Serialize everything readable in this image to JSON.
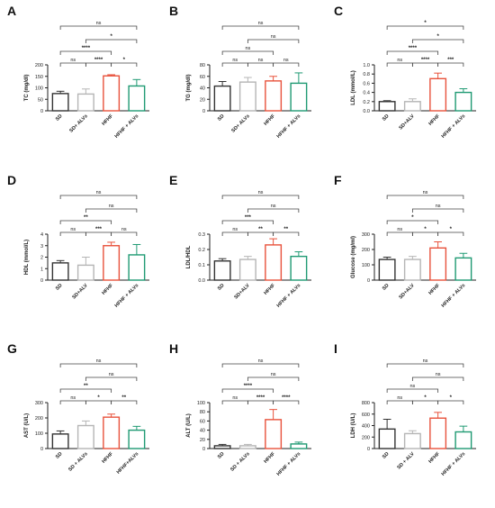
{
  "colors": {
    "SD": "#333333",
    "SD_ALV": "#b5b5b5",
    "HFHF": "#e8523c",
    "HFHF_ALV": "#1f9a73"
  },
  "chart_data": [
    {
      "panel": "A",
      "type": "bar",
      "categories": [
        "SD",
        "SD+ ALVs",
        "HFHF",
        "HFHF + ALVs"
      ],
      "values": [
        75,
        73,
        152,
        108
      ],
      "errors": [
        10,
        22,
        5,
        28
      ],
      "ylabel": "TC (mg/dl)",
      "ylim": [
        0,
        200
      ],
      "yticks": [
        0,
        50,
        100,
        150,
        200
      ],
      "brackets": [
        {
          "a": 0,
          "b": 1,
          "label": "ns",
          "level": 0
        },
        {
          "a": 1,
          "b": 2,
          "label": "****",
          "level": 0
        },
        {
          "a": 2,
          "b": 3,
          "label": "*",
          "level": 0
        },
        {
          "a": 0,
          "b": 2,
          "label": "****",
          "level": 1
        },
        {
          "a": 1,
          "b": 3,
          "label": "*",
          "level": 2
        },
        {
          "a": 0,
          "b": 3,
          "label": "ns",
          "level": 3
        }
      ]
    },
    {
      "panel": "B",
      "type": "bar",
      "categories": [
        "SD",
        "SD+ ALVs",
        "HFHF",
        "HFHF + ALVs"
      ],
      "values": [
        43,
        50,
        52,
        48
      ],
      "errors": [
        8,
        8,
        8,
        18
      ],
      "ylabel": "TG (mg/dl)",
      "ylim": [
        0,
        80
      ],
      "yticks": [
        0,
        20,
        40,
        60,
        80
      ],
      "brackets": [
        {
          "a": 0,
          "b": 1,
          "label": "ns",
          "level": 0
        },
        {
          "a": 1,
          "b": 2,
          "label": "ns",
          "level": 0
        },
        {
          "a": 2,
          "b": 3,
          "label": "ns",
          "level": 0
        },
        {
          "a": 0,
          "b": 2,
          "label": "ns",
          "level": 1
        },
        {
          "a": 1,
          "b": 3,
          "label": "ns",
          "level": 2
        },
        {
          "a": 0,
          "b": 3,
          "label": "ns",
          "level": 3
        }
      ]
    },
    {
      "panel": "C",
      "type": "bar",
      "categories": [
        "SD",
        "SD+ALV",
        "HFHF",
        "HFHF + ALVs"
      ],
      "values": [
        0.2,
        0.2,
        0.7,
        0.4
      ],
      "errors": [
        0.02,
        0.06,
        0.12,
        0.08
      ],
      "ylabel": "LDL (mmol/L)",
      "ylim": [
        0,
        1.0
      ],
      "yticks": [
        0.0,
        0.2,
        0.4,
        0.6,
        0.8,
        1.0
      ],
      "brackets": [
        {
          "a": 0,
          "b": 1,
          "label": "ns",
          "level": 0
        },
        {
          "a": 1,
          "b": 2,
          "label": "****",
          "level": 0
        },
        {
          "a": 2,
          "b": 3,
          "label": "***",
          "level": 0
        },
        {
          "a": 0,
          "b": 2,
          "label": "****",
          "level": 1
        },
        {
          "a": 1,
          "b": 3,
          "label": "*",
          "level": 2
        },
        {
          "a": 0,
          "b": 3,
          "label": "*",
          "level": 3
        }
      ]
    },
    {
      "panel": "D",
      "type": "bar",
      "categories": [
        "SD",
        "SD+ALV",
        "HFHF",
        "HFHF + ALVs"
      ],
      "values": [
        1.5,
        1.3,
        3.0,
        2.2
      ],
      "errors": [
        0.2,
        0.7,
        0.3,
        0.9
      ],
      "ylabel": "HDL (mmol/L)",
      "ylim": [
        0,
        4
      ],
      "yticks": [
        0,
        1,
        2,
        3,
        4
      ],
      "brackets": [
        {
          "a": 0,
          "b": 1,
          "label": "ns",
          "level": 0
        },
        {
          "a": 1,
          "b": 2,
          "label": "***",
          "level": 0
        },
        {
          "a": 2,
          "b": 3,
          "label": "ns",
          "level": 0
        },
        {
          "a": 0,
          "b": 2,
          "label": "**",
          "level": 1
        },
        {
          "a": 1,
          "b": 3,
          "label": "ns",
          "level": 2
        },
        {
          "a": 0,
          "b": 3,
          "label": "ns",
          "level": 3
        }
      ]
    },
    {
      "panel": "E",
      "type": "bar",
      "categories": [
        "SD",
        "SD+ALV",
        "HFHF",
        "HFHF + ALVs"
      ],
      "values": [
        0.125,
        0.135,
        0.23,
        0.155
      ],
      "errors": [
        0.015,
        0.02,
        0.04,
        0.03
      ],
      "ylabel": "LDL/HDL",
      "ylim": [
        0,
        0.3
      ],
      "yticks": [
        0.0,
        0.1,
        0.2,
        0.3
      ],
      "brackets": [
        {
          "a": 0,
          "b": 1,
          "label": "ns",
          "level": 0
        },
        {
          "a": 1,
          "b": 2,
          "label": "**",
          "level": 0
        },
        {
          "a": 2,
          "b": 3,
          "label": "**",
          "level": 0
        },
        {
          "a": 0,
          "b": 2,
          "label": "***",
          "level": 1
        },
        {
          "a": 1,
          "b": 3,
          "label": "ns",
          "level": 2
        },
        {
          "a": 0,
          "b": 3,
          "label": "ns",
          "level": 3
        }
      ]
    },
    {
      "panel": "F",
      "type": "bar",
      "categories": [
        "SD",
        "SD+ALV",
        "HFHF",
        "HFHF + ALVs"
      ],
      "values": [
        135,
        135,
        210,
        145
      ],
      "errors": [
        15,
        20,
        40,
        30
      ],
      "ylabel": "Glucose (mg/ml)",
      "ylim": [
        0,
        300
      ],
      "yticks": [
        0,
        100,
        200,
        300
      ],
      "brackets": [
        {
          "a": 0,
          "b": 1,
          "label": "ns",
          "level": 0
        },
        {
          "a": 1,
          "b": 2,
          "label": "*",
          "level": 0
        },
        {
          "a": 2,
          "b": 3,
          "label": "*",
          "level": 0
        },
        {
          "a": 0,
          "b": 2,
          "label": "*",
          "level": 1
        },
        {
          "a": 1,
          "b": 3,
          "label": "ns",
          "level": 2
        },
        {
          "a": 0,
          "b": 3,
          "label": "ns",
          "level": 3
        }
      ]
    },
    {
      "panel": "G",
      "type": "bar",
      "categories": [
        "SD",
        "SD + ALVs",
        "HFHF",
        "HFHF+ALVs"
      ],
      "values": [
        95,
        150,
        205,
        120
      ],
      "errors": [
        20,
        30,
        20,
        25
      ],
      "ylabel": "AST (U/L)",
      "ylim": [
        0,
        300
      ],
      "yticks": [
        0,
        100,
        200,
        300
      ],
      "brackets": [
        {
          "a": 0,
          "b": 1,
          "label": "ns",
          "level": 0
        },
        {
          "a": 1,
          "b": 2,
          "label": "*",
          "level": 0
        },
        {
          "a": 2,
          "b": 3,
          "label": "**",
          "level": 0
        },
        {
          "a": 0,
          "b": 2,
          "label": "**",
          "level": 1
        },
        {
          "a": 1,
          "b": 3,
          "label": "ns",
          "level": 2
        },
        {
          "a": 0,
          "b": 3,
          "label": "ns",
          "level": 3
        }
      ]
    },
    {
      "panel": "H",
      "type": "bar",
      "categories": [
        "SD",
        "SD + ALVs",
        "HFHF",
        "HFHF + ALVs"
      ],
      "values": [
        6,
        6,
        63,
        10
      ],
      "errors": [
        3,
        3,
        22,
        4
      ],
      "ylabel": "ALT (U/L)",
      "ylim": [
        0,
        100
      ],
      "yticks": [
        0,
        20,
        40,
        60,
        80,
        100
      ],
      "brackets": [
        {
          "a": 0,
          "b": 1,
          "label": "ns",
          "level": 0
        },
        {
          "a": 1,
          "b": 2,
          "label": "****",
          "level": 0
        },
        {
          "a": 2,
          "b": 3,
          "label": "****",
          "level": 0
        },
        {
          "a": 0,
          "b": 2,
          "label": "****",
          "level": 1
        },
        {
          "a": 1,
          "b": 3,
          "label": "ns",
          "level": 2
        },
        {
          "a": 0,
          "b": 3,
          "label": "ns",
          "level": 3
        }
      ]
    },
    {
      "panel": "I",
      "type": "bar",
      "categories": [
        "SD",
        "SD + ALV",
        "HFHF",
        "HFHF + ALVs"
      ],
      "values": [
        340,
        260,
        530,
        290
      ],
      "errors": [
        170,
        50,
        100,
        100
      ],
      "ylabel": "LDH (U/L)",
      "ylim": [
        0,
        800
      ],
      "yticks": [
        0,
        200,
        400,
        600,
        800
      ],
      "brackets": [
        {
          "a": 0,
          "b": 1,
          "label": "ns",
          "level": 0
        },
        {
          "a": 1,
          "b": 2,
          "label": "*",
          "level": 0
        },
        {
          "a": 2,
          "b": 3,
          "label": "*",
          "level": 0
        },
        {
          "a": 0,
          "b": 2,
          "label": "ns",
          "level": 1
        },
        {
          "a": 1,
          "b": 3,
          "label": "ns",
          "level": 2
        },
        {
          "a": 0,
          "b": 3,
          "label": "ns",
          "level": 3
        }
      ]
    }
  ]
}
